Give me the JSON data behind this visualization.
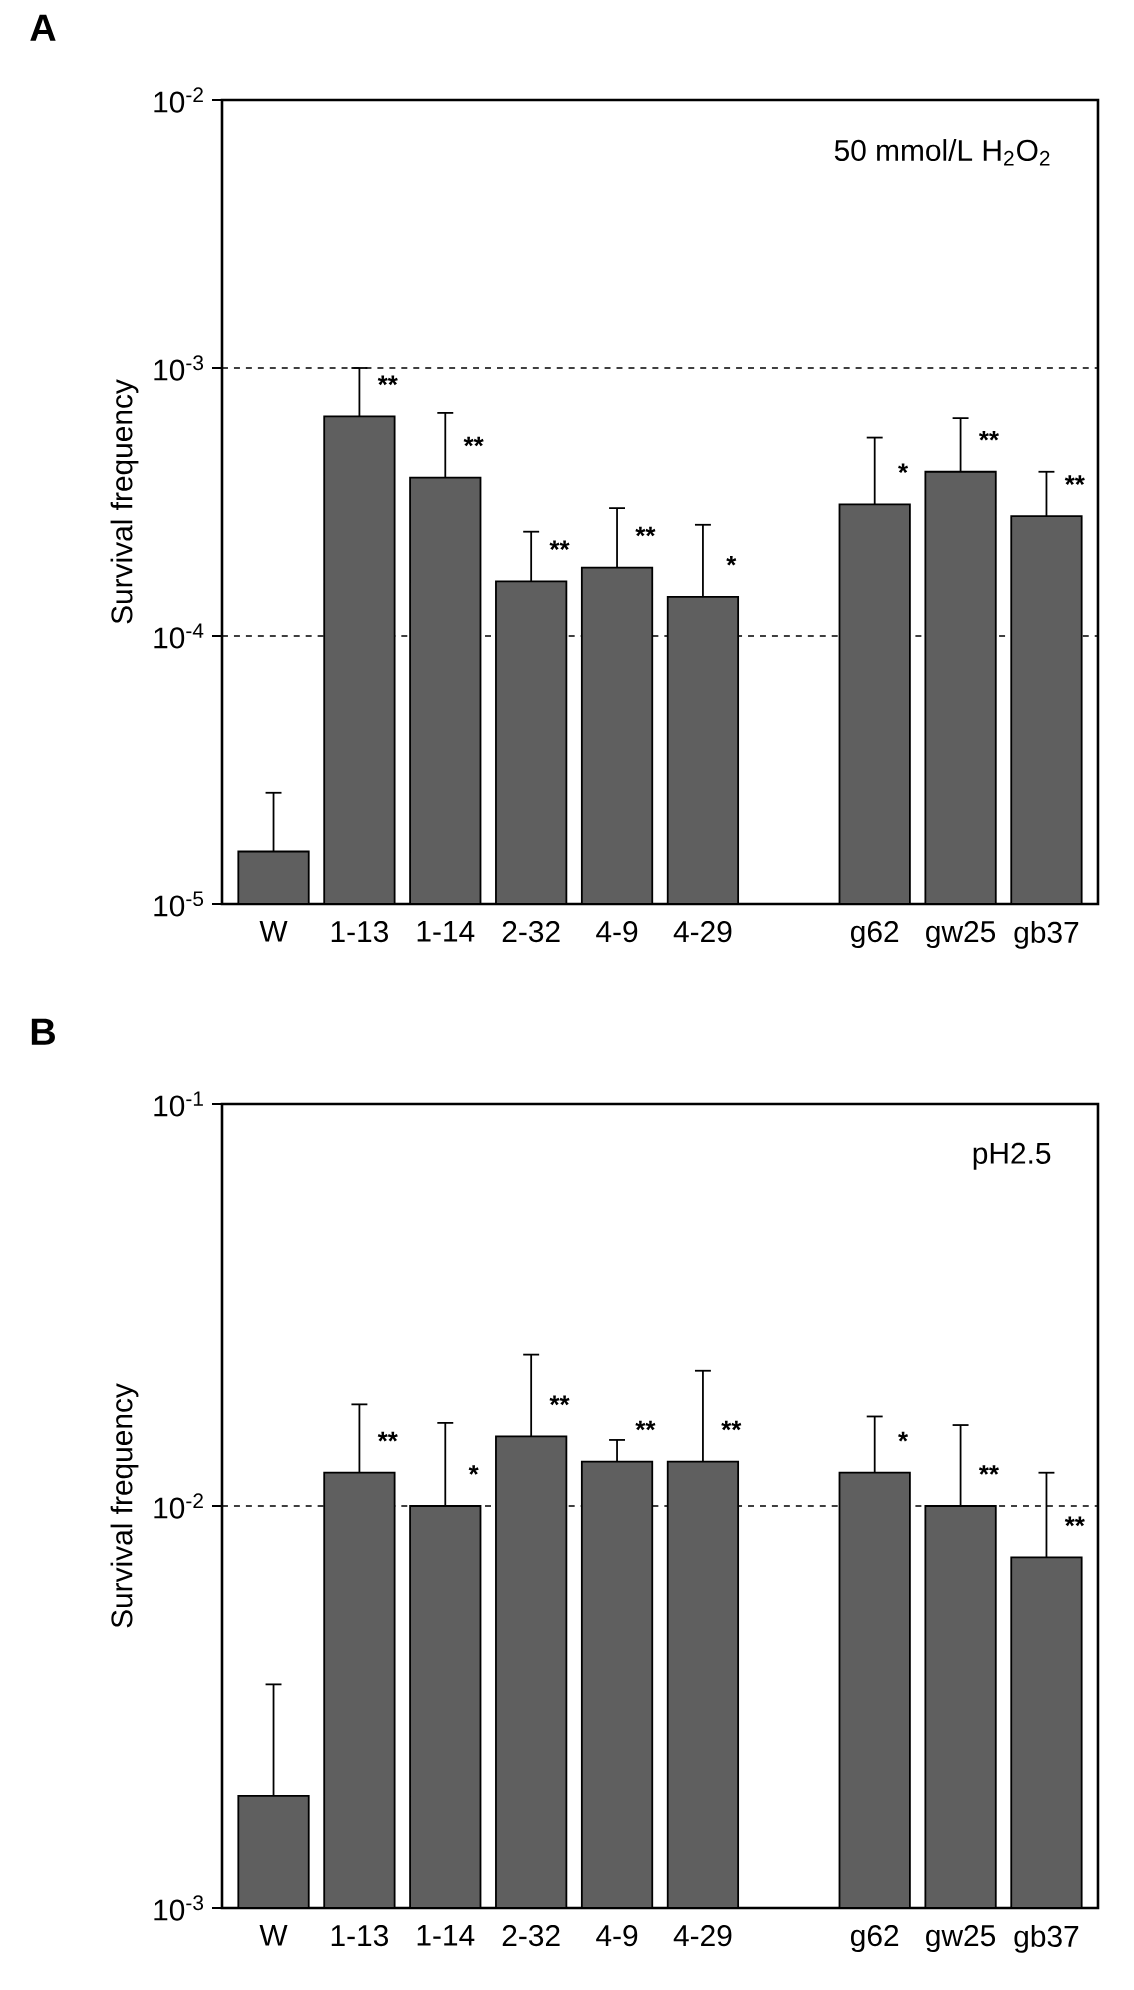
{
  "chart_data": [
    {
      "type": "bar",
      "title": "A",
      "ylabel": "Survival frequency",
      "log": "y",
      "color": "#5f5f5f",
      "categories": [
        "W",
        "1-13",
        "1-14",
        "2-32",
        "4-9",
        "4-29",
        null,
        "g62",
        "gw25",
        "gb37"
      ],
      "values": [
        1.57e-05,
        0.00066,
        0.00039,
        0.00016,
        0.00018,
        0.00014,
        null,
        0.00031,
        0.00041,
        0.00028
      ],
      "errors": [
        [
          1.57e-05,
          2.6e-05
        ],
        [
          0.00066,
          0.001
        ],
        [
          0.00039,
          0.00068
        ],
        [
          0.00016,
          0.000245
        ],
        [
          0.00018,
          0.0003
        ],
        [
          0.00014,
          0.00026
        ],
        null,
        [
          0.00031,
          0.00055
        ],
        [
          0.00041,
          0.00065
        ],
        [
          0.00028,
          0.00041
        ]
      ],
      "ylim": [
        1e-05,
        0.01
      ],
      "yticks": [
        {
          "value": 1e-05,
          "label": "10$^{-5}$"
        },
        {
          "value": 0.0001,
          "label": "10$^{-4}$"
        },
        {
          "value": 0.001,
          "label": "10$^{-3}$"
        },
        {
          "value": 0.01,
          "label": "10$^{-2}$"
        }
      ],
      "ref_lines": [
        {
          "axis": "y",
          "value": 0.001,
          "line_style": "dashed",
          "color": "#000000"
        },
        {
          "axis": "y",
          "value": 0.0001,
          "line_style": "dashed",
          "color": "#000000"
        }
      ],
      "annotations": [
        "50 mmol/L H$_{2}$O$_{2}$",
        {
          "text": "**",
          "x": "1-13",
          "y": 0.00066
        },
        {
          "text": "**",
          "x": "1-14",
          "y": 0.00039
        },
        {
          "text": "**",
          "x": "2-32",
          "y": 0.00016
        },
        {
          "text": "**",
          "x": "4-9",
          "y": 0.00018
        },
        {
          "text": "*",
          "x": "4-29",
          "y": 0.00014
        },
        {
          "text": "*",
          "x": "g62",
          "y": 0.00031
        },
        {
          "text": "**",
          "x": "gw25",
          "y": 0.00041
        },
        {
          "text": "**",
          "x": "gb37",
          "y": 0.00028
        }
      ]
    },
    {
      "type": "bar",
      "title": "B",
      "ylabel": "Survival frequency",
      "log": "y",
      "color": "#5f5f5f",
      "categories": [
        "W",
        "1-13",
        "1-14",
        "2-32",
        "4-9",
        "4-29",
        null,
        "g62",
        "gw25",
        "gb37"
      ],
      "values": [
        0.0019,
        0.0121,
        0.01,
        0.0149,
        0.0129,
        0.0129,
        null,
        0.0121,
        0.01,
        0.00745
      ],
      "errors": [
        [
          0.0019,
          0.0036
        ],
        [
          0.0121,
          0.0179
        ],
        [
          0.01,
          0.0161
        ],
        [
          0.0149,
          0.0238
        ],
        [
          0.0129,
          0.0146
        ],
        [
          0.0129,
          0.0217
        ],
        null,
        [
          0.0121,
          0.0167
        ],
        [
          0.01,
          0.0159
        ],
        [
          0.00745,
          0.0121
        ]
      ],
      "ylim": [
        0.001,
        0.1
      ],
      "yticks": [
        {
          "value": 0.001,
          "label": "10$^{-3}$"
        },
        {
          "value": 0.01,
          "label": "10$^{-2}$"
        },
        {
          "value": 0.1,
          "label": "10$^{-1}$"
        }
      ],
      "ref_lines": [
        {
          "axis": "y",
          "value": 0.01,
          "line_style": "dashed",
          "color": "#000000"
        }
      ],
      "annotations": [
        "pH2.5",
        {
          "text": "**",
          "x": "1-13",
          "y": 0.0121
        },
        {
          "text": "*",
          "x": "1-14",
          "y": 0.01
        },
        {
          "text": "**",
          "x": "2-32",
          "y": 0.0149
        },
        {
          "text": "**",
          "x": "4-9",
          "y": 0.0129
        },
        {
          "text": "**",
          "x": "4-29",
          "y": 0.0129
        },
        {
          "text": "*",
          "x": "g62",
          "y": 0.0121
        },
        {
          "text": "**",
          "x": "gw25",
          "y": 0.01
        },
        {
          "text": "**",
          "x": "gb37",
          "y": 0.00745
        }
      ]
    }
  ]
}
